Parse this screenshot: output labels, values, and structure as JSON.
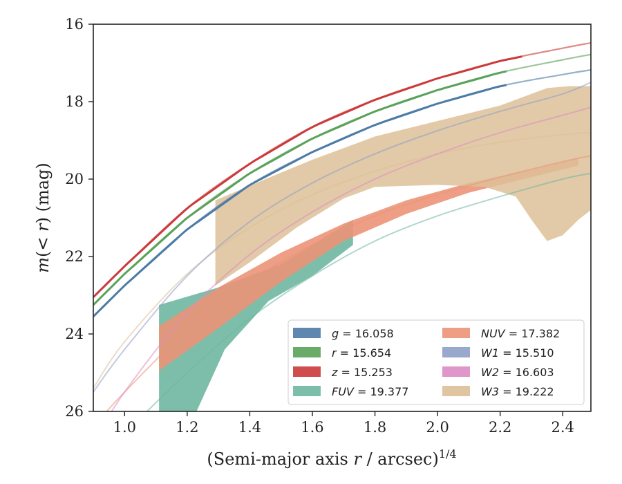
{
  "chart_data": {
    "type": "line",
    "xlabel": "(Semi-major axis r / arcsec)^1/4",
    "ylabel": "m(< r) (mag)",
    "xlim": [
      0.9,
      2.49
    ],
    "ylim": [
      26,
      16
    ],
    "y_inverted": true,
    "grid": false,
    "legend_position": "bottom-right",
    "x_ticks": [
      "1.0",
      "1.2",
      "1.4",
      "1.6",
      "1.8",
      "2.0",
      "2.2",
      "2.4"
    ],
    "y_ticks": [
      "16",
      "18",
      "20",
      "22",
      "24",
      "26"
    ],
    "series": [
      {
        "band": "g",
        "value": "16.058",
        "color": "#4c7ba6",
        "kind": "line",
        "fit_end": 2.22,
        "x": [
          0.9,
          1.0,
          1.2,
          1.4,
          1.6,
          1.8,
          2.0,
          2.2,
          2.4,
          2.49
        ],
        "y": [
          23.55,
          22.75,
          21.3,
          20.15,
          19.3,
          18.6,
          18.05,
          17.6,
          17.3,
          17.18
        ]
      },
      {
        "band": "r",
        "value": "15.654",
        "color": "#5aa25a",
        "kind": "line",
        "fit_end": 2.22,
        "x": [
          0.9,
          1.0,
          1.2,
          1.4,
          1.6,
          1.8,
          2.0,
          2.2,
          2.4,
          2.49
        ],
        "y": [
          23.25,
          22.45,
          21.0,
          19.85,
          18.95,
          18.25,
          17.7,
          17.25,
          16.92,
          16.78
        ]
      },
      {
        "band": "z",
        "value": "15.253",
        "color": "#cc3a3a",
        "kind": "line",
        "fit_end": 2.27,
        "x": [
          0.9,
          1.0,
          1.2,
          1.4,
          1.6,
          1.8,
          2.0,
          2.2,
          2.4,
          2.49
        ],
        "y": [
          23.05,
          22.25,
          20.75,
          19.6,
          18.65,
          17.95,
          17.4,
          16.95,
          16.62,
          16.48
        ]
      },
      {
        "band": "FUV",
        "value": "19.377",
        "color": "#6fb7a1",
        "kind": "band",
        "x": [
          0.9,
          1.0,
          1.2,
          1.4,
          1.6,
          1.8,
          2.0,
          2.2,
          2.4,
          2.49
        ],
        "y": [
          27.6,
          26.6,
          25.0,
          23.6,
          22.5,
          21.6,
          20.95,
          20.45,
          20.0,
          19.85
        ],
        "band_upper": [
          [
            1.11,
            23.25
          ],
          [
            1.3,
            22.8
          ],
          [
            1.5,
            22.2
          ],
          [
            1.73,
            21.05
          ]
        ],
        "band_lower": [
          [
            1.11,
            26.0
          ],
          [
            1.23,
            26.0
          ],
          [
            1.32,
            24.4
          ],
          [
            1.46,
            23.15
          ],
          [
            1.6,
            22.5
          ],
          [
            1.73,
            21.7
          ]
        ]
      },
      {
        "band": "NUV",
        "value": "17.382",
        "color": "#eb9478",
        "kind": "band",
        "x": [
          0.9,
          1.0,
          1.2,
          1.4,
          1.6,
          1.8,
          2.0,
          2.2,
          2.4,
          2.49
        ],
        "y": [
          26.4,
          25.5,
          23.9,
          22.65,
          21.7,
          20.95,
          20.4,
          19.95,
          19.55,
          19.4
        ],
        "band_upper": [
          [
            1.11,
            23.8
          ],
          [
            1.3,
            22.8
          ],
          [
            1.5,
            21.9
          ],
          [
            1.7,
            21.15
          ],
          [
            1.9,
            20.55
          ],
          [
            2.1,
            20.1
          ],
          [
            2.3,
            19.75
          ],
          [
            2.45,
            19.45
          ]
        ],
        "band_lower": [
          [
            1.11,
            24.95
          ],
          [
            1.3,
            23.85
          ],
          [
            1.5,
            22.65
          ],
          [
            1.7,
            21.6
          ],
          [
            1.9,
            20.9
          ],
          [
            2.1,
            20.35
          ],
          [
            2.3,
            19.95
          ],
          [
            2.45,
            19.65
          ]
        ]
      },
      {
        "band": "W1",
        "value": "15.510",
        "color": "#8e9ec8",
        "kind": "line",
        "x": [
          0.9,
          1.0,
          1.2,
          1.4,
          1.6,
          1.8,
          2.0,
          2.2,
          2.4,
          2.49
        ],
        "y": [
          25.5,
          24.4,
          22.5,
          21.1,
          20.1,
          19.35,
          18.75,
          18.25,
          17.8,
          17.5
        ]
      },
      {
        "band": "W2",
        "value": "16.603",
        "color": "#dc8cc3",
        "kind": "line",
        "x": [
          0.9,
          1.0,
          1.2,
          1.4,
          1.6,
          1.8,
          2.0,
          2.2,
          2.4,
          2.49
        ],
        "y": [
          26.8,
          25.5,
          23.45,
          21.95,
          20.85,
          20.0,
          19.35,
          18.8,
          18.35,
          18.15
        ]
      },
      {
        "band": "W3",
        "value": "19.222",
        "color": "#ddbf98",
        "kind": "band",
        "x": [
          0.9,
          1.0,
          1.2,
          1.4,
          1.6,
          1.8,
          2.0,
          2.2,
          2.4,
          2.49
        ],
        "y": [
          25.4,
          24.2,
          22.45,
          21.25,
          20.4,
          19.8,
          19.35,
          19.05,
          18.85,
          18.8
        ],
        "band_upper": [
          [
            1.29,
            20.55
          ],
          [
            1.45,
            20.0
          ],
          [
            1.6,
            19.5
          ],
          [
            1.8,
            18.9
          ],
          [
            2.0,
            18.5
          ],
          [
            2.2,
            18.1
          ],
          [
            2.35,
            17.65
          ],
          [
            2.42,
            17.6
          ],
          [
            2.49,
            17.6
          ]
        ],
        "band_lower": [
          [
            1.29,
            22.75
          ],
          [
            1.4,
            22.15
          ],
          [
            1.55,
            21.25
          ],
          [
            1.7,
            20.5
          ],
          [
            1.8,
            20.2
          ],
          [
            2.0,
            20.15
          ],
          [
            2.15,
            20.2
          ],
          [
            2.25,
            20.45
          ],
          [
            2.3,
            21.05
          ],
          [
            2.35,
            21.6
          ],
          [
            2.4,
            21.45
          ],
          [
            2.45,
            21.05
          ],
          [
            2.49,
            20.8
          ]
        ]
      }
    ]
  }
}
